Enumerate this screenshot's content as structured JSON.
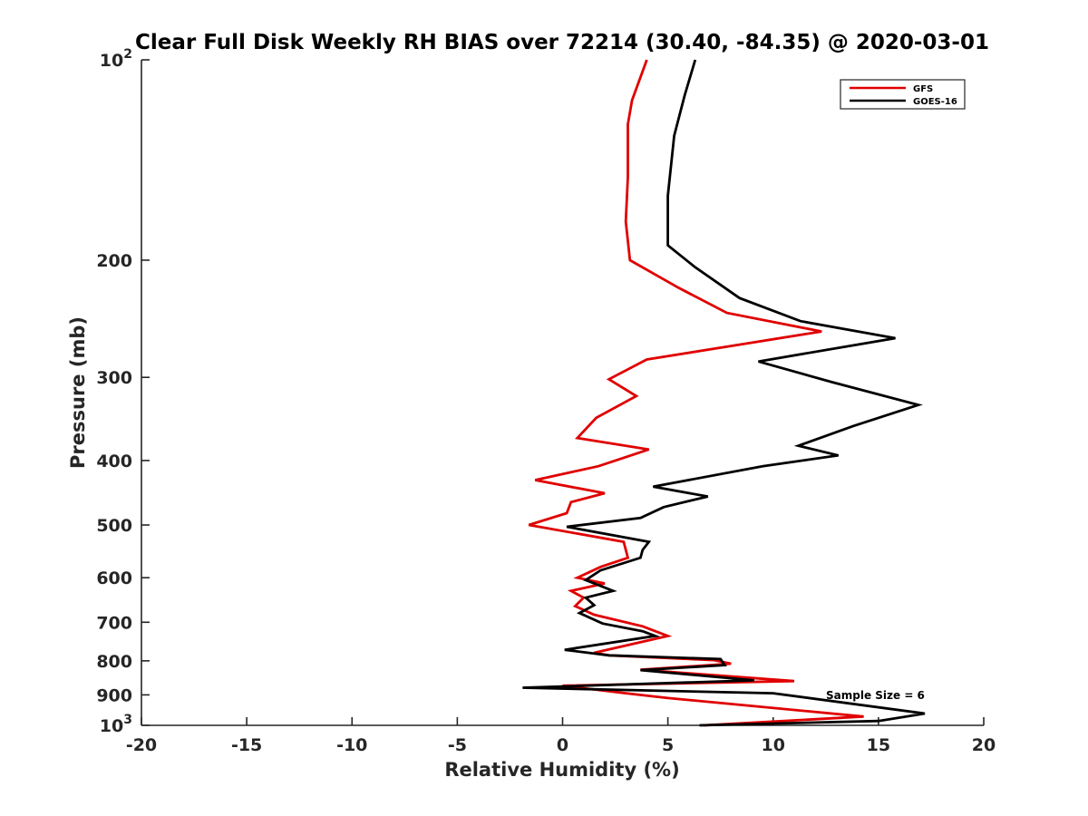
{
  "chart_data": {
    "type": "line",
    "title": "Clear Full Disk Weekly RH BIAS over 72214 (30.40, -84.35) @ 2020-03-01",
    "xlabel": "Relative Humidity (%)",
    "ylabel": "Pressure (mb)",
    "xlim": [
      -20,
      20
    ],
    "ylim": [
      100,
      1000
    ],
    "yscale": "log",
    "y_reversed": true,
    "x_ticks": [
      {
        "value": -20,
        "label": "-20"
      },
      {
        "value": -15,
        "label": "-15"
      },
      {
        "value": -10,
        "label": "-10"
      },
      {
        "value": -5,
        "label": "-5"
      },
      {
        "value": 0,
        "label": "0"
      },
      {
        "value": 5,
        "label": "5"
      },
      {
        "value": 10,
        "label": "10"
      },
      {
        "value": 15,
        "label": "15"
      },
      {
        "value": 20,
        "label": "20"
      }
    ],
    "y_ticks": [
      {
        "value": 100,
        "label": "10",
        "sup": "2"
      },
      {
        "value": 200,
        "label": "200"
      },
      {
        "value": 300,
        "label": "300"
      },
      {
        "value": 400,
        "label": "400"
      },
      {
        "value": 500,
        "label": "500"
      },
      {
        "value": 600,
        "label": "600"
      },
      {
        "value": 700,
        "label": "700"
      },
      {
        "value": 800,
        "label": "800"
      },
      {
        "value": 900,
        "label": "900"
      },
      {
        "value": 1000,
        "label": "10",
        "sup": "3"
      }
    ],
    "legend_position": "top-right",
    "annotation": "Sample Size = 6",
    "series": [
      {
        "name": "GFS",
        "color": "#e00000",
        "points": [
          [
            4.0,
            100
          ],
          [
            3.3,
            115
          ],
          [
            3.1,
            125
          ],
          [
            3.1,
            150
          ],
          [
            3.0,
            175
          ],
          [
            3.2,
            200
          ],
          [
            5.5,
            220
          ],
          [
            7.8,
            240
          ],
          [
            12.3,
            256
          ],
          [
            4.0,
            282
          ],
          [
            2.2,
            302
          ],
          [
            3.5,
            320
          ],
          [
            1.6,
            345
          ],
          [
            0.7,
            370
          ],
          [
            4.1,
            385
          ],
          [
            1.7,
            408
          ],
          [
            -1.3,
            428
          ],
          [
            2.0,
            448
          ],
          [
            0.4,
            462
          ],
          [
            0.2,
            480
          ],
          [
            -1.6,
            500
          ],
          [
            2.9,
            530
          ],
          [
            3.1,
            560
          ],
          [
            1.8,
            578
          ],
          [
            0.7,
            600
          ],
          [
            2.0,
            612
          ],
          [
            0.4,
            628
          ],
          [
            1.0,
            643
          ],
          [
            0.6,
            662
          ],
          [
            1.5,
            682
          ],
          [
            3.8,
            710
          ],
          [
            5.0,
            734
          ],
          [
            1.5,
            778
          ],
          [
            2.2,
            785
          ],
          [
            7.2,
            798
          ],
          [
            8.0,
            808
          ],
          [
            3.7,
            825
          ],
          [
            11.0,
            858
          ],
          [
            0.0,
            872
          ],
          [
            3.0,
            895
          ],
          [
            5.0,
            910
          ],
          [
            9.0,
            935
          ],
          [
            14.3,
            970
          ],
          [
            6.7,
            1000
          ]
        ]
      },
      {
        "name": "GOES-16",
        "color": "#000000",
        "points": [
          [
            6.3,
            100
          ],
          [
            5.8,
            113
          ],
          [
            5.3,
            130
          ],
          [
            5.0,
            160
          ],
          [
            5.0,
            190
          ],
          [
            6.3,
            205
          ],
          [
            8.4,
            228
          ],
          [
            11.3,
            247
          ],
          [
            15.8,
            262
          ],
          [
            9.3,
            284
          ],
          [
            12.8,
            305
          ],
          [
            16.9,
            330
          ],
          [
            13.8,
            355
          ],
          [
            11.2,
            380
          ],
          [
            13.1,
            393
          ],
          [
            9.5,
            408
          ],
          [
            4.3,
            438
          ],
          [
            6.9,
            453
          ],
          [
            4.8,
            470
          ],
          [
            3.7,
            488
          ],
          [
            0.2,
            503
          ],
          [
            4.1,
            530
          ],
          [
            3.8,
            545
          ],
          [
            3.7,
            560
          ],
          [
            1.8,
            585
          ],
          [
            1.1,
            605
          ],
          [
            2.4,
            628
          ],
          [
            1.1,
            643
          ],
          [
            1.5,
            660
          ],
          [
            0.8,
            678
          ],
          [
            1.9,
            703
          ],
          [
            3.8,
            722
          ],
          [
            4.4,
            734
          ],
          [
            0.1,
            770
          ],
          [
            2.2,
            785
          ],
          [
            7.5,
            795
          ],
          [
            7.7,
            812
          ],
          [
            3.7,
            826
          ],
          [
            9.1,
            856
          ],
          [
            -1.9,
            878
          ],
          [
            10.0,
            895
          ],
          [
            17.2,
            960
          ],
          [
            15.0,
            985
          ],
          [
            6.5,
            1000
          ]
        ]
      }
    ]
  }
}
